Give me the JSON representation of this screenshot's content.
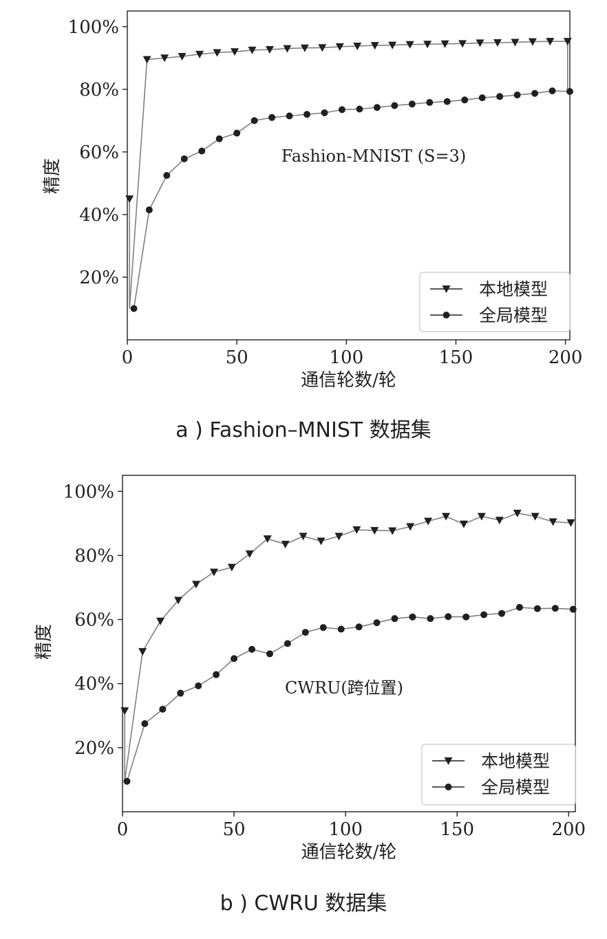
{
  "chart_data": [
    {
      "type": "line",
      "caption": "a ) Fashion–MNIST 数据集",
      "annotation": "Fashion-MNIST (S=3)",
      "xlabel": "通信轮数/轮",
      "ylabel": "精度",
      "xlim": [
        0,
        202
      ],
      "ylim": [
        0,
        105
      ],
      "xticks": [
        {
          "v": 0,
          "label": "0"
        },
        {
          "v": 50,
          "label": "50"
        },
        {
          "v": 100,
          "label": "100"
        },
        {
          "v": 150,
          "label": "150"
        },
        {
          "v": 200,
          "label": "200"
        }
      ],
      "yticks": [
        {
          "v": 20,
          "label": "20%"
        },
        {
          "v": 40,
          "label": "40%"
        },
        {
          "v": 60,
          "label": "60%"
        },
        {
          "v": 80,
          "label": "80%"
        },
        {
          "v": 100,
          "label": "100%"
        }
      ],
      "grid": false,
      "legend_position": "bottom-right",
      "series": [
        {
          "name": "本地模型",
          "marker": "triangle-down",
          "line_color": "#7f7f7f",
          "marker_color": "#231f20",
          "x": [
            1,
            1,
            9,
            17,
            25,
            33,
            41,
            49,
            57,
            65,
            73,
            81,
            89,
            97,
            105,
            113,
            121,
            129,
            137,
            145,
            153,
            161,
            169,
            177,
            185,
            193,
            201,
            201
          ],
          "y": [
            45,
            10,
            89.5,
            90,
            90.5,
            91.2,
            91.7,
            92,
            92.5,
            92.7,
            93,
            93.2,
            93.3,
            93.6,
            93.8,
            94,
            94.1,
            94.3,
            94.4,
            94.5,
            94.6,
            94.8,
            94.9,
            95,
            95.2,
            95.3,
            95.3,
            79.5
          ],
          "marker_indices": [
            0,
            2,
            3,
            4,
            5,
            6,
            7,
            8,
            9,
            10,
            11,
            12,
            13,
            14,
            15,
            16,
            17,
            18,
            19,
            20,
            21,
            22,
            23,
            24,
            25,
            26
          ]
        },
        {
          "name": "全局模型",
          "marker": "circle",
          "line_color": "#7f7f7f",
          "marker_color": "#231f20",
          "x": [
            3,
            10,
            18,
            26,
            34,
            42,
            50,
            58,
            66,
            74,
            82,
            90,
            98,
            106,
            114,
            122,
            130,
            138,
            146,
            154,
            162,
            170,
            178,
            186,
            194,
            202
          ],
          "y": [
            10,
            41.5,
            52.5,
            57.8,
            60.3,
            64.2,
            66,
            70,
            71,
            71.5,
            72,
            72.5,
            73.5,
            73.7,
            74.2,
            74.8,
            75.3,
            75.8,
            76.1,
            76.6,
            77.3,
            77.7,
            78.2,
            78.7,
            79.5,
            79.3
          ],
          "marker_indices": [
            0,
            1,
            2,
            3,
            4,
            5,
            6,
            7,
            8,
            9,
            10,
            11,
            12,
            13,
            14,
            15,
            16,
            17,
            18,
            19,
            20,
            21,
            22,
            23,
            24,
            25
          ]
        }
      ]
    },
    {
      "type": "line",
      "caption": "b ) CWRU 数据集",
      "annotation": "CWRU(跨位置)",
      "xlabel": "通信轮数/轮",
      "ylabel": "精度",
      "xlim": [
        0,
        203
      ],
      "ylim": [
        0,
        105
      ],
      "xticks": [
        {
          "v": 0,
          "label": "0"
        },
        {
          "v": 50,
          "label": "50"
        },
        {
          "v": 100,
          "label": "100"
        },
        {
          "v": 150,
          "label": "150"
        },
        {
          "v": 200,
          "label": "200"
        }
      ],
      "yticks": [
        {
          "v": 20,
          "label": "20%"
        },
        {
          "v": 40,
          "label": "40%"
        },
        {
          "v": 60,
          "label": "60%"
        },
        {
          "v": 80,
          "label": "80%"
        },
        {
          "v": 100,
          "label": "100%"
        }
      ],
      "grid": false,
      "legend_position": "bottom-right",
      "series": [
        {
          "name": "本地模型",
          "marker": "triangle-down",
          "line_color": "#7f7f7f",
          "marker_color": "#231f20",
          "x": [
            1,
            1,
            9,
            17,
            25,
            33,
            41,
            49,
            57,
            65,
            73,
            81,
            89,
            97,
            105,
            113,
            121,
            129,
            137,
            145,
            153,
            161,
            169,
            177,
            185,
            193,
            201
          ],
          "y": [
            31.5,
            9.5,
            50,
            59.5,
            66,
            71,
            74.8,
            76.3,
            80.5,
            85.2,
            83.5,
            86,
            84.5,
            86,
            88,
            87.8,
            87.7,
            89,
            90.7,
            92.2,
            89.8,
            92.2,
            91,
            93.2,
            92.2,
            90.5,
            90.2
          ],
          "marker_indices": [
            0,
            2,
            3,
            4,
            5,
            6,
            7,
            8,
            9,
            10,
            11,
            12,
            13,
            14,
            15,
            16,
            17,
            18,
            19,
            20,
            21,
            22,
            23,
            24,
            25,
            26
          ]
        },
        {
          "name": "全局模型",
          "marker": "circle",
          "line_color": "#7f7f7f",
          "marker_color": "#231f20",
          "x": [
            2,
            10,
            18,
            26,
            34,
            42,
            50,
            58,
            66,
            74,
            82,
            90,
            98,
            106,
            114,
            122,
            130,
            138,
            146,
            154,
            162,
            170,
            178,
            186,
            194,
            202
          ],
          "y": [
            9.5,
            27.5,
            32,
            37,
            39.3,
            42.8,
            47.8,
            50.7,
            49.3,
            52.5,
            56,
            57.5,
            57,
            57.7,
            59,
            60.3,
            60.8,
            60.3,
            60.9,
            60.8,
            61.5,
            61.9,
            63.8,
            63.4,
            63.5,
            63.2
          ],
          "marker_indices": [
            0,
            1,
            2,
            3,
            4,
            5,
            6,
            7,
            8,
            9,
            10,
            11,
            12,
            13,
            14,
            15,
            16,
            17,
            18,
            19,
            20,
            21,
            22,
            23,
            24,
            25
          ]
        }
      ]
    }
  ]
}
